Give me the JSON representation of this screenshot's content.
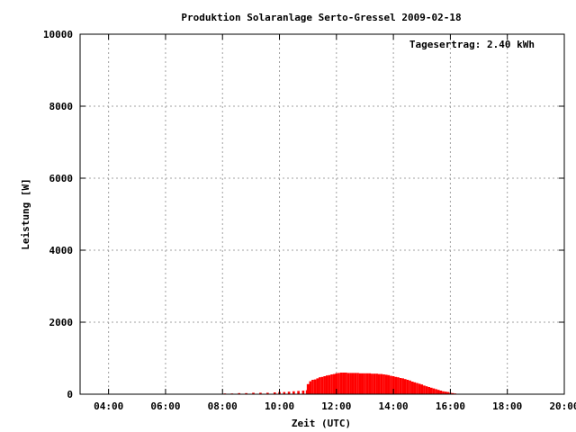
{
  "chart_data": {
    "type": "bar",
    "title": "Produktion Solaranlage Serto-Gressel 2009-02-18",
    "xlabel": "Zeit (UTC)",
    "ylabel": "Leistung [W]",
    "annotation": "Tagesertrag: 2.40 kWh",
    "xlim": [
      "03:00",
      "20:00"
    ],
    "ylim": [
      0,
      10000
    ],
    "xticks": [
      "04:00",
      "06:00",
      "08:00",
      "10:00",
      "12:00",
      "14:00",
      "16:00",
      "18:00",
      "20:00"
    ],
    "yticks": [
      "0",
      "2000",
      "4000",
      "6000",
      "8000",
      "10000"
    ],
    "grid": true,
    "bar_color": "#ff0000",
    "x": [
      "08:05",
      "08:20",
      "08:35",
      "08:50",
      "09:05",
      "09:20",
      "09:35",
      "09:50",
      "10:00",
      "10:10",
      "10:20",
      "10:30",
      "10:40",
      "10:50",
      "10:58",
      "11:00",
      "11:05",
      "11:10",
      "11:15",
      "11:20",
      "11:25",
      "11:30",
      "11:35",
      "11:40",
      "11:45",
      "11:50",
      "11:55",
      "12:00",
      "12:05",
      "12:10",
      "12:15",
      "12:20",
      "12:25",
      "12:30",
      "12:35",
      "12:40",
      "12:45",
      "12:50",
      "12:55",
      "13:00",
      "13:05",
      "13:10",
      "13:15",
      "13:20",
      "13:25",
      "13:30",
      "13:35",
      "13:40",
      "13:45",
      "13:50",
      "13:55",
      "14:00",
      "14:05",
      "14:10",
      "14:15",
      "14:20",
      "14:25",
      "14:30",
      "14:35",
      "14:40",
      "14:45",
      "14:50",
      "14:55",
      "15:00",
      "15:05",
      "15:10",
      "15:15",
      "15:20",
      "15:25",
      "15:30",
      "15:35",
      "15:40",
      "15:45",
      "15:50",
      "15:55",
      "16:00",
      "16:05",
      "16:10",
      "16:15"
    ],
    "values": [
      20,
      20,
      30,
      30,
      40,
      40,
      40,
      50,
      60,
      60,
      70,
      80,
      90,
      100,
      110,
      280,
      360,
      400,
      410,
      440,
      470,
      480,
      500,
      520,
      530,
      550,
      560,
      580,
      590,
      600,
      600,
      600,
      590,
      590,
      590,
      590,
      590,
      580,
      580,
      580,
      580,
      580,
      570,
      570,
      570,
      560,
      560,
      550,
      540,
      530,
      510,
      500,
      480,
      470,
      450,
      440,
      420,
      400,
      380,
      350,
      330,
      310,
      290,
      270,
      240,
      220,
      200,
      180,
      160,
      140,
      120,
      100,
      80,
      70,
      60,
      40,
      30,
      20,
      10
    ]
  }
}
